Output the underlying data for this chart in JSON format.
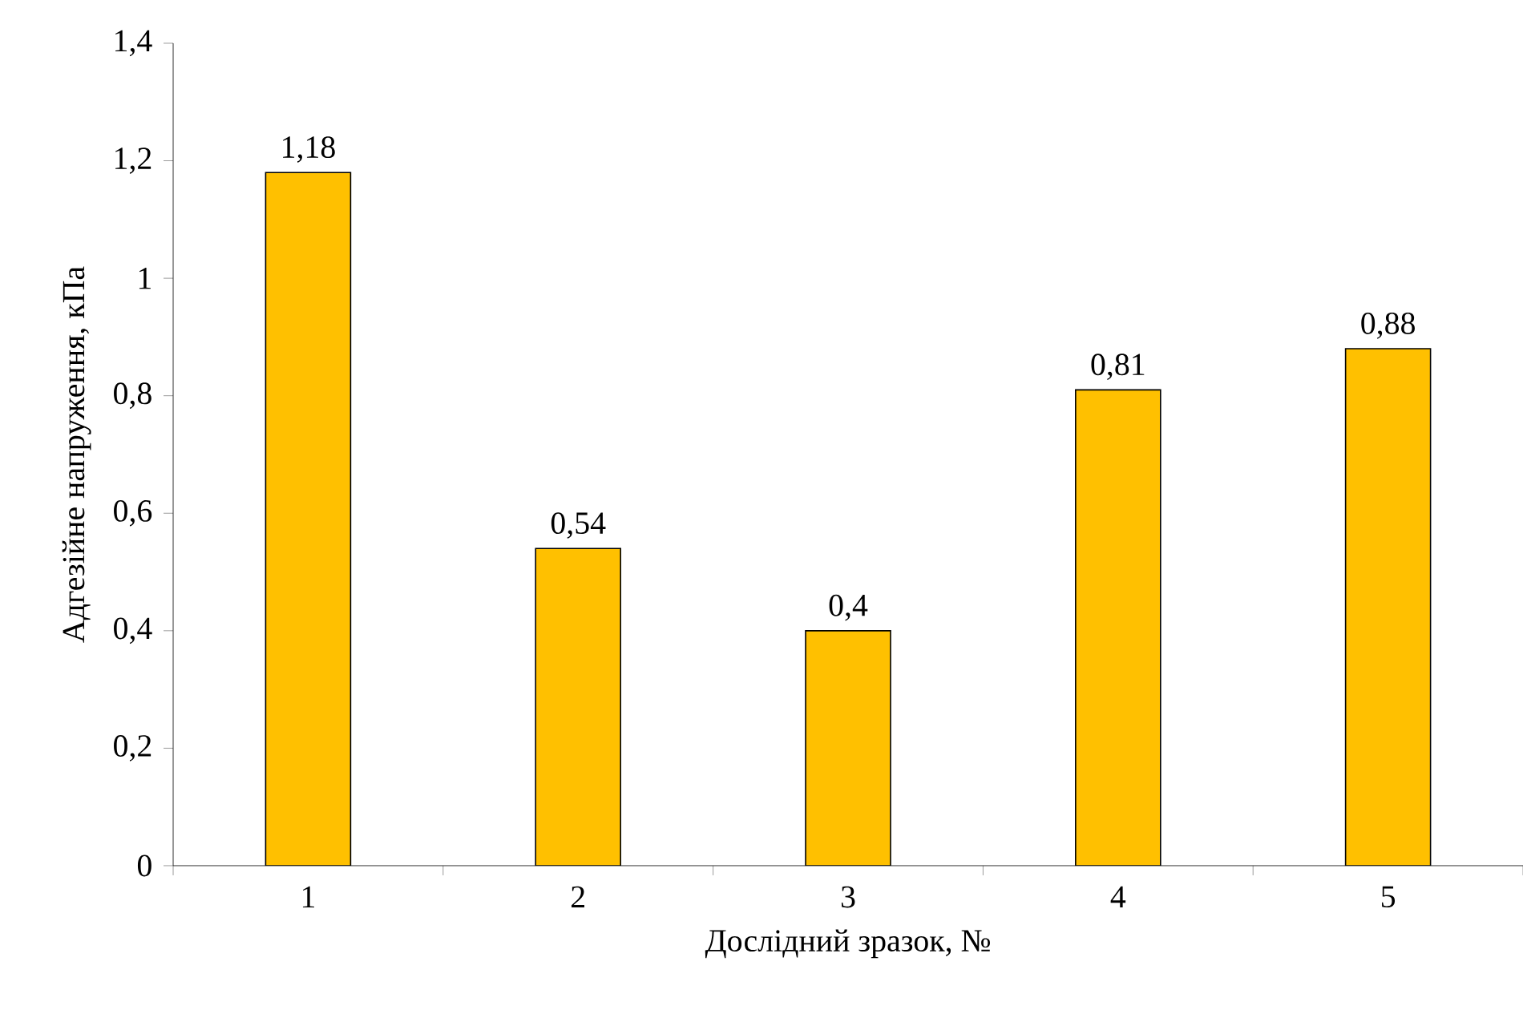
{
  "chart_data": {
    "type": "bar",
    "xlabel": "Дослідний зразок, №",
    "ylabel": "Адгезійне напруження, кПа",
    "categories": [
      "1",
      "2",
      "3",
      "4",
      "5"
    ],
    "values": [
      1.18,
      0.54,
      0.4,
      0.81,
      0.88
    ],
    "value_labels": [
      "1,18",
      "0,54",
      "0,4",
      "0,81",
      "0,88"
    ],
    "color": "#ffc000",
    "ylim": [
      0,
      1.4
    ],
    "yticks": [
      0,
      {
        "value": 0.2,
        "label": "0,2"
      },
      {
        "value": 0.4,
        "label": "0,4"
      },
      {
        "value": 0.6,
        "label": "0,6"
      },
      {
        "value": 0.8,
        "label": "0,8"
      },
      1,
      {
        "value": 1.2,
        "label": "1,2"
      },
      {
        "value": 1.4,
        "label": "1,4"
      }
    ],
    "grid": false
  }
}
